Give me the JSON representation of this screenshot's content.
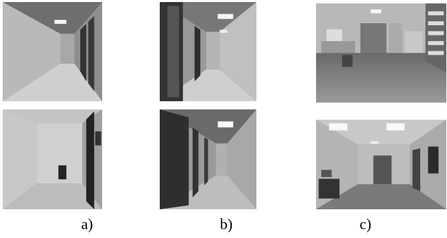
{
  "figure": {
    "panels": [
      {
        "label": "a)"
      },
      {
        "label": "b)"
      },
      {
        "label": "c)"
      }
    ]
  }
}
